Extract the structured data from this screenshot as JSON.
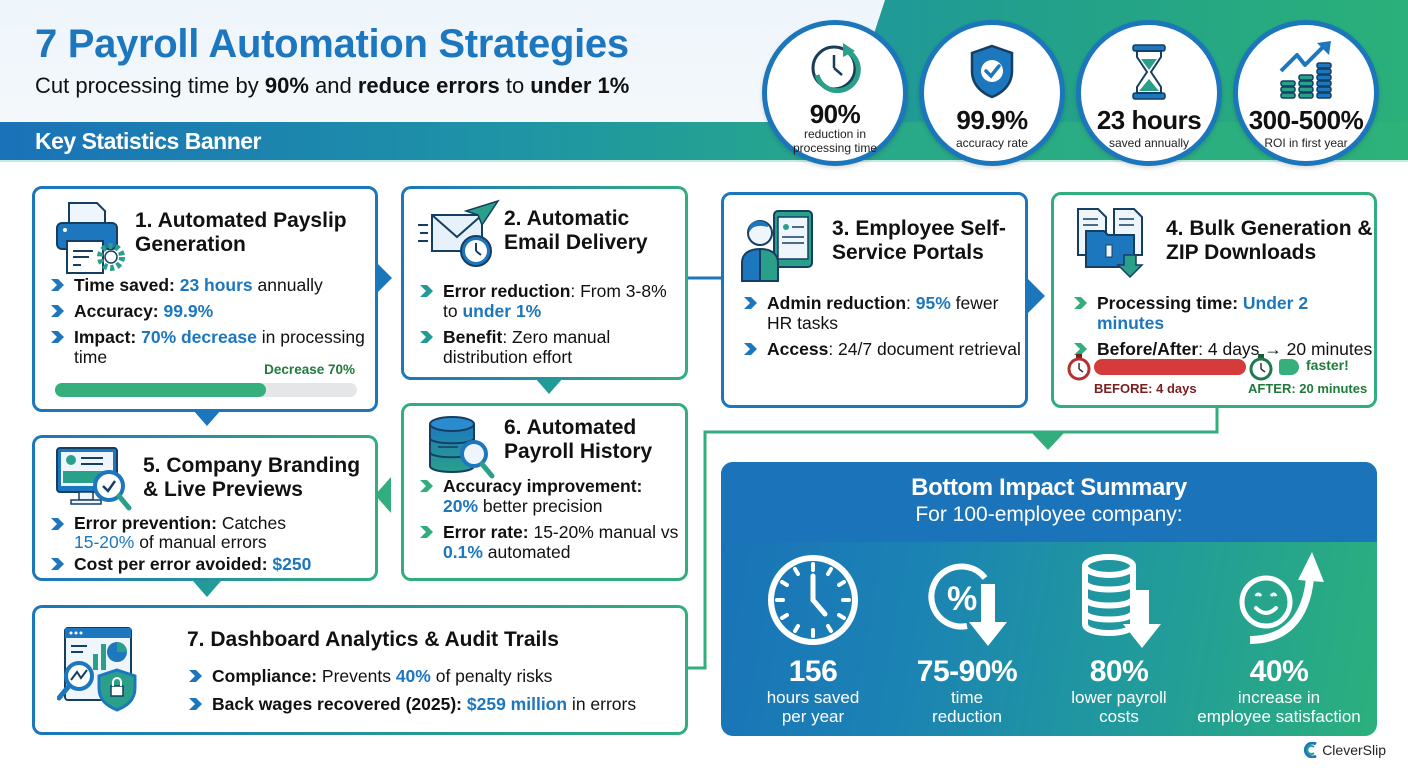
{
  "header": {
    "title": "7 Payroll Automation Strategies",
    "subtitle_parts": [
      "Cut processing time by ",
      "90%",
      " and ",
      "reduce errors",
      " to ",
      "under 1%"
    ],
    "banner_label": "Key Statistics Banner"
  },
  "stats": [
    {
      "icon": "clock-refresh-icon",
      "value": "90%",
      "label_line1": "reduction in",
      "label_line2": "processing time"
    },
    {
      "icon": "shield-check-icon",
      "value": "99.9%",
      "label_line1": "accuracy rate",
      "label_line2": ""
    },
    {
      "icon": "hourglass-icon",
      "value": "23 hours",
      "label_line1": "saved annually",
      "label_line2": ""
    },
    {
      "icon": "coins-growth-icon",
      "value": "300-500%",
      "label_line1": "ROI in first year",
      "label_line2": ""
    }
  ],
  "cards": {
    "c1": {
      "title": "1. Automated Payslip Generation",
      "b1_label": "Time saved:",
      "b1_hl": "23 hours",
      "b1_rest": " annually",
      "b2_label": "Accuracy:",
      "b2_hl": "99.9%",
      "b3_label": "Impact:",
      "b3_hl": "70% decrease",
      "b3_rest": " in processing time",
      "progress_label": "Decrease 70%",
      "progress_pct": 70
    },
    "c2": {
      "title": "2. Automatic Email Delivery",
      "b1_label": "Error reduction",
      "b1_rest": ": From 3-8% to ",
      "b1_hl": "under 1%",
      "b2_label": "Benefit",
      "b2_rest": ": Zero manual distribution effort"
    },
    "c3": {
      "title": "3. Employee Self-Service Portals",
      "b1_label": "Admin reduction",
      "b1_sep": ": ",
      "b1_hl": "95%",
      "b1_rest": " fewer HR tasks",
      "b2_label": "Access",
      "b2_rest": ": 24/7 document retrieval"
    },
    "c4": {
      "title": "4. Bulk Generation & ZIP Downloads",
      "b1_label": "Processing time:",
      "b1_hl": "Under 2 minutes",
      "b2_label": "Before/After",
      "b2_rest": ": 4 days → 20 minutes",
      "before_label": "BEFORE: 4 days",
      "after_label": "AFTER: 20 minutes",
      "faster_label": "faster!"
    },
    "c5": {
      "title": "5. Company Branding & Live Previews",
      "b1_label": "Error prevention:",
      "b1_rest": " Catches ",
      "b1_hl": "15-20%",
      "b1_rest2": " of manual errors",
      "b2_label": "Cost per error avoided:",
      "b2_hl": "$250"
    },
    "c6": {
      "title": "6. Automated Payroll History",
      "b1_label": "Accuracy improvement:",
      "b1_hl": "20%",
      "b1_rest": " better precision",
      "b2_label": "Error rate:",
      "b2_rest": " 15-20% manual vs ",
      "b2_hl": "0.1%",
      "b2_rest2": " automated"
    },
    "c7": {
      "title": "7. Dashboard Analytics & Audit Trails",
      "b1_label": "Compliance:",
      "b1_rest": " Prevents ",
      "b1_hl": "40%",
      "b1_rest2": " of penalty risks",
      "b2_label": "Back wages recovered (2025):",
      "b2_hl": "$259 million",
      "b2_rest": " in errors"
    }
  },
  "impact": {
    "title": "Bottom Impact Summary",
    "subtitle": "For 100-employee company:",
    "items": [
      {
        "icon": "clock-icon",
        "value": "156",
        "label_line1": "hours saved",
        "label_line2": "per year"
      },
      {
        "icon": "percent-down-icon",
        "value": "75-90%",
        "label_line1": "time",
        "label_line2": "reduction"
      },
      {
        "icon": "coins-down-icon",
        "value": "80%",
        "label_line1": "lower payroll",
        "label_line2": "costs"
      },
      {
        "icon": "smile-up-icon",
        "value": "40%",
        "label_line1": "increase in",
        "label_line2": "employee satisfaction"
      }
    ]
  },
  "brand": {
    "name": "CleverSlip"
  },
  "colors": {
    "primary_blue": "#1d77be",
    "green": "#32ae7e",
    "red": "#d63b3b",
    "dark_green": "#1f7a3c"
  }
}
